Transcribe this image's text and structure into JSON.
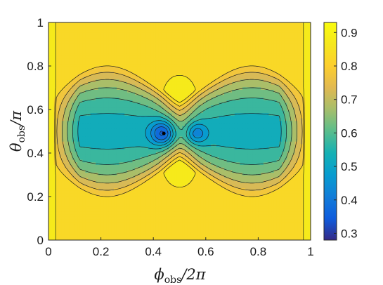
{
  "chart_data": {
    "type": "heatmap",
    "subtype": "filled-contour",
    "colormap": "parula",
    "grid": false,
    "legend": "colorbar-right",
    "xlabel": {
      "symbol": "ϕ",
      "sub": "obs",
      "tail": "/2π"
    },
    "ylabel": {
      "symbol": "θ",
      "sub": "obs",
      "tail": "/π"
    },
    "xlim": [
      0,
      1
    ],
    "ylim": [
      0,
      1
    ],
    "xticks": [
      "0",
      "0.2",
      "0.4",
      "0.6",
      "0.8",
      "1"
    ],
    "xtick_values": [
      0,
      0.2,
      0.4,
      0.6,
      0.8,
      1
    ],
    "yticks": [
      "0",
      "0.2",
      "0.4",
      "0.6",
      "0.8",
      "1"
    ],
    "ytick_values": [
      0,
      0.2,
      0.4,
      0.6,
      0.8,
      1
    ],
    "colorbar": {
      "range": [
        0.28,
        0.93
      ],
      "ticks": [
        "0.3",
        "0.4",
        "0.5",
        "0.6",
        "0.7",
        "0.8",
        "0.9"
      ],
      "tick_values": [
        0.3,
        0.4,
        0.5,
        0.6,
        0.7,
        0.8,
        0.9
      ]
    },
    "contour_levels": [
      0.3,
      0.35,
      0.4,
      0.45,
      0.5,
      0.55,
      0.6,
      0.65,
      0.7,
      0.75,
      0.8,
      0.85
    ],
    "model": {
      "background_level": 0.83,
      "edge_peak_level": 0.935,
      "minimum_level": 0.3,
      "minimum_location": [
        0.44,
        0.49
      ],
      "secondary_minimum_location": [
        0.56,
        0.49
      ],
      "symmetry_axis_x": 0.5,
      "symmetry_axis_y": 0.5
    }
  }
}
